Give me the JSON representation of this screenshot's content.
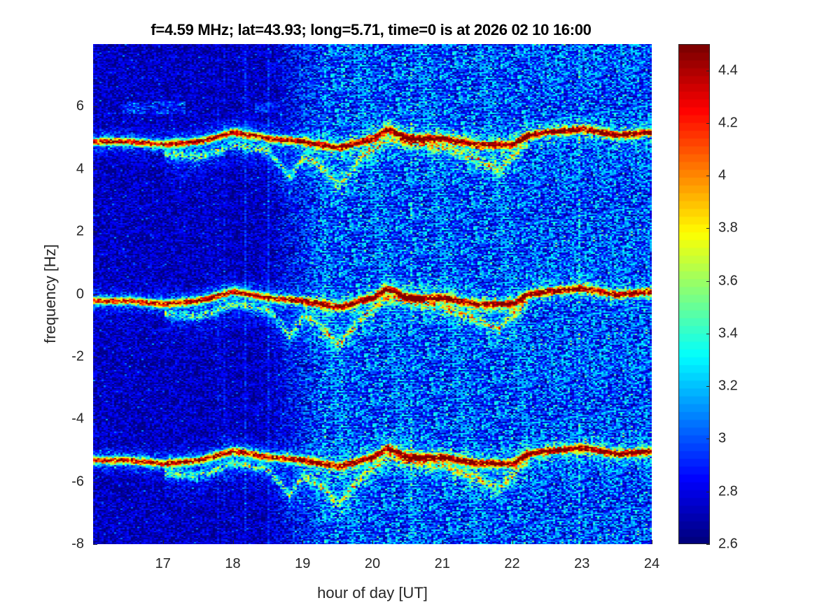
{
  "chart_data": {
    "type": "heatmap",
    "title": "f=4.59 MHz;  lat=43.93; long=5.71, time=0 is at 2026 02 10 16:00",
    "xlabel": "hour of day [UT]",
    "ylabel": "frequency [Hz]",
    "xlim": [
      16,
      24
    ],
    "ylim": [
      -8,
      8
    ],
    "xticks": [
      "17",
      "18",
      "19",
      "20",
      "21",
      "22",
      "23",
      "24"
    ],
    "yticks": [
      "-8",
      "-6",
      "-4",
      "-2",
      "0",
      "2",
      "4",
      "6"
    ],
    "colormap": "jet",
    "clim": [
      2.6,
      4.5
    ],
    "colorbar_ticks": [
      "2.6",
      "2.8",
      "3",
      "3.2",
      "3.4",
      "3.6",
      "3.8",
      "4",
      "4.2",
      "4.4"
    ],
    "colorbar_position": "right",
    "grid": false,
    "traces": {
      "description_offsets_hz": [
        5.1,
        0,
        -5.1
      ],
      "main_trace": {
        "hour": [
          16,
          16.5,
          17,
          17.5,
          18,
          18.5,
          19,
          19.5,
          20,
          20.2,
          20.5,
          21,
          21.5,
          22,
          22.2,
          22.5,
          23,
          23.5,
          24
        ],
        "freq_hz": [
          -0.2,
          -0.2,
          -0.3,
          -0.2,
          0.1,
          -0.1,
          -0.2,
          -0.4,
          -0.1,
          0.2,
          -0.1,
          -0.1,
          -0.3,
          -0.3,
          0.0,
          0.1,
          0.2,
          0.0,
          0.1
        ]
      },
      "secondary_trace": {
        "hour": [
          17,
          17.5,
          18,
          18.5,
          18.8,
          19.0,
          19.2,
          19.5,
          19.8,
          20.2,
          21,
          21.5,
          21.8,
          22.2
        ],
        "freq_hz": [
          -0.6,
          -0.7,
          -0.3,
          -0.5,
          -1.3,
          -0.7,
          -0.9,
          -1.6,
          -0.8,
          -0.1,
          -0.4,
          -0.8,
          -1.1,
          -0.2
        ]
      }
    }
  }
}
